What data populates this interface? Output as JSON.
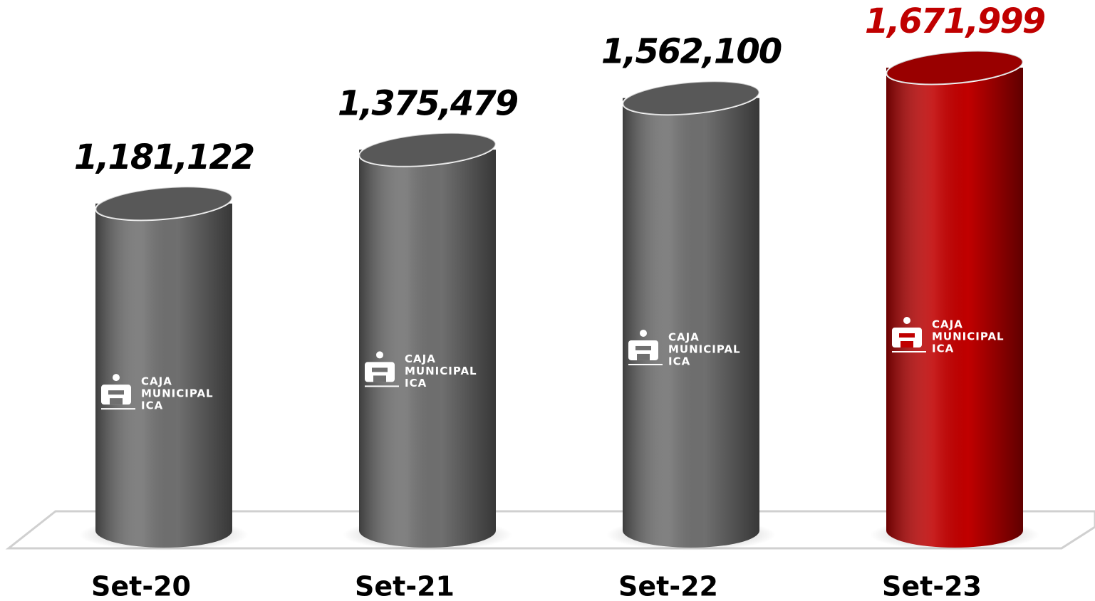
{
  "chart_data": {
    "type": "bar",
    "categories": [
      "Set-20",
      "Set-21",
      "Set-22",
      "Set-23"
    ],
    "values": [
      1181122,
      1375479,
      1562100,
      1671999
    ],
    "value_labels": [
      "1,181,122",
      "1,375,479",
      "1,562,100",
      "1,671,999"
    ],
    "colors": [
      "#6f6f6f",
      "#6f6f6f",
      "#6f6f6f",
      "#c00000"
    ],
    "label_colors": [
      "#000000",
      "#000000",
      "#000000",
      "#c00000"
    ],
    "logo_text": [
      "CAJA",
      "MUNICIPAL",
      "ICA"
    ]
  }
}
